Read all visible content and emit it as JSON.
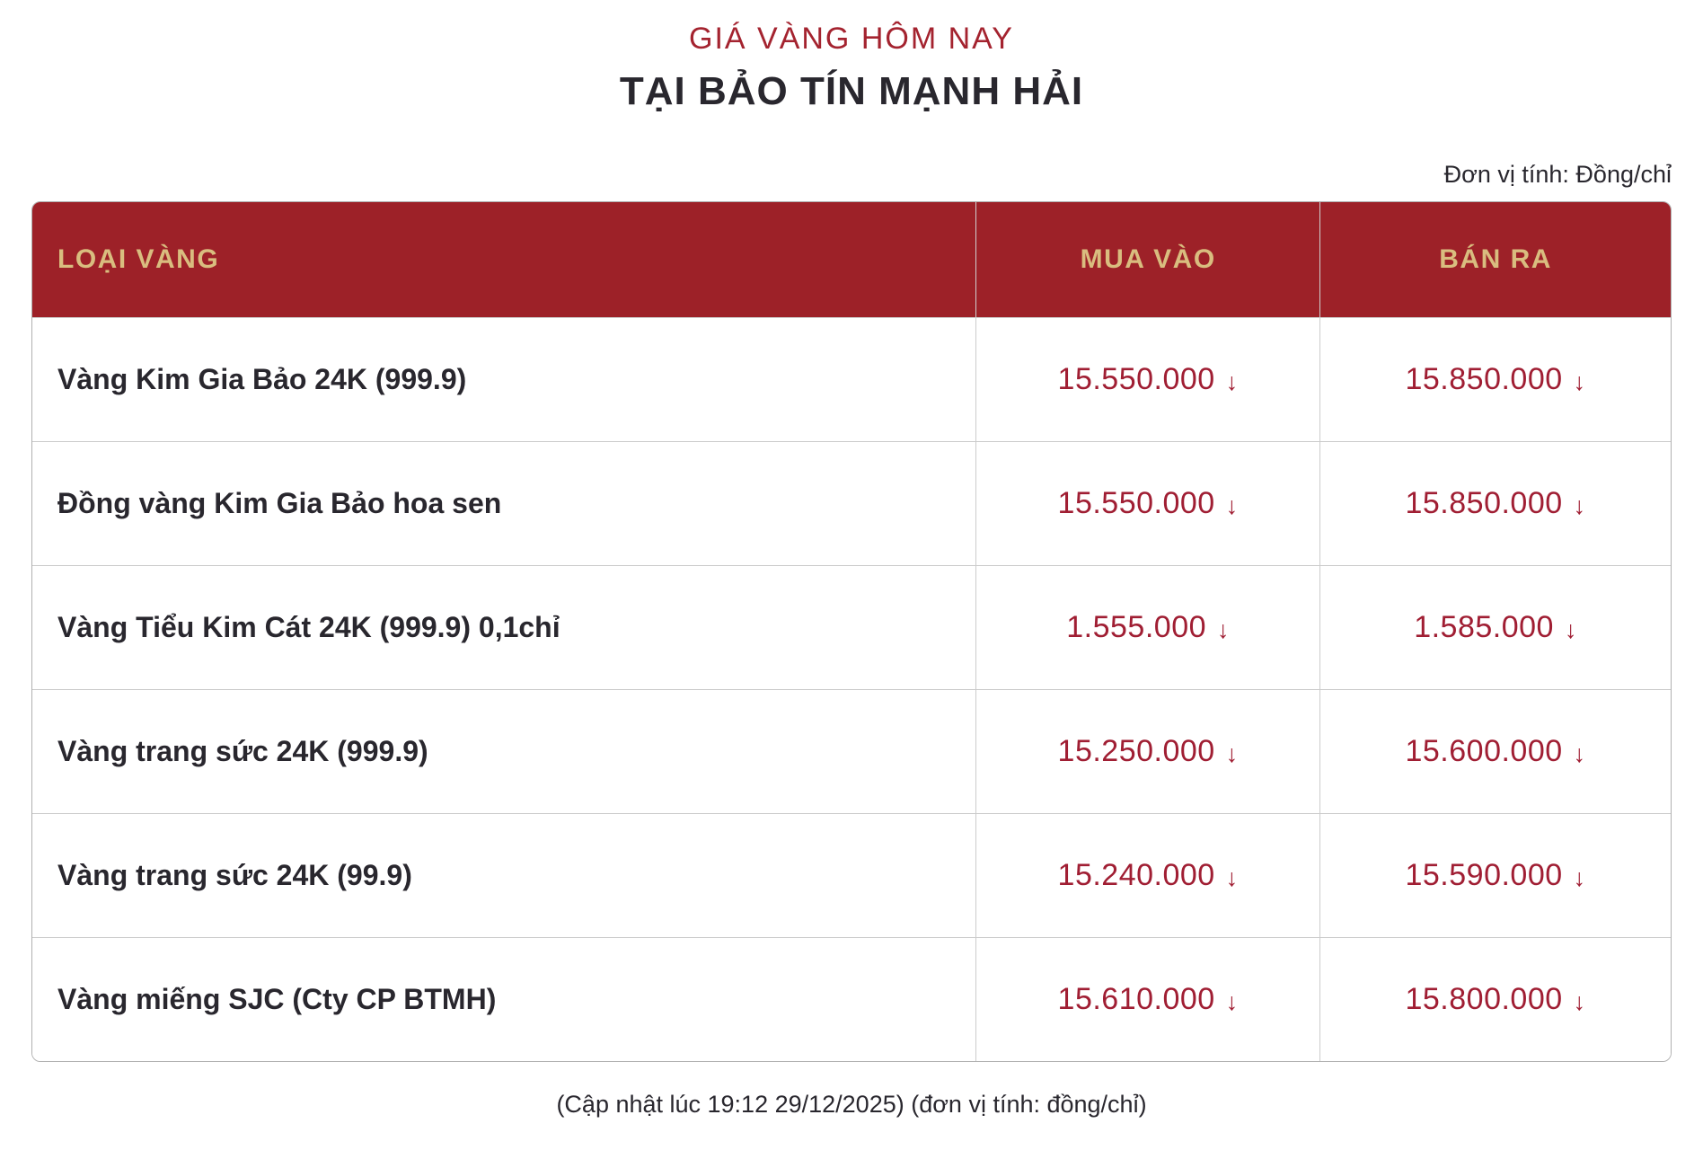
{
  "page": {
    "title": "GIÁ VÀNG HÔM NAY",
    "subtitle": "TẠI BẢO TÍN MẠNH HẢI",
    "unit_note": "Đơn vị tính: Đồng/chỉ",
    "footer_note": "(Cập nhật lúc 19:12 29/12/2025) (đơn vị tính: đồng/chỉ)"
  },
  "icons": {
    "down_arrow": "↓"
  },
  "colors": {
    "header_bg": "#9d2128",
    "header_text_gold": "#d9bd7f",
    "price_red": "#a01e33",
    "title_red": "#a4232f",
    "body_text": "#29272e",
    "divider": "#cccccc"
  },
  "table": {
    "columns": [
      {
        "label": "LOẠI VÀNG"
      },
      {
        "label": "MUA VÀO"
      },
      {
        "label": "BÁN RA"
      }
    ],
    "rows": [
      {
        "type": "Vàng Kim Gia Bảo 24K (999.9)",
        "buy": "15.550.000",
        "buy_trend": "down",
        "sell": "15.850.000",
        "sell_trend": "down"
      },
      {
        "type": "Đồng vàng Kim Gia Bảo hoa sen",
        "buy": "15.550.000",
        "buy_trend": "down",
        "sell": "15.850.000",
        "sell_trend": "down"
      },
      {
        "type": "Vàng Tiểu Kim Cát 24K (999.9) 0,1chỉ",
        "buy": "1.555.000",
        "buy_trend": "down",
        "sell": "1.585.000",
        "sell_trend": "down"
      },
      {
        "type": "Vàng trang sức 24K (999.9)",
        "buy": "15.250.000",
        "buy_trend": "down",
        "sell": "15.600.000",
        "sell_trend": "down"
      },
      {
        "type": "Vàng trang sức 24K (99.9)",
        "buy": "15.240.000",
        "buy_trend": "down",
        "sell": "15.590.000",
        "sell_trend": "down"
      },
      {
        "type": "Vàng miếng SJC (Cty CP BTMH)",
        "buy": "15.610.000",
        "buy_trend": "down",
        "sell": "15.800.000",
        "sell_trend": "down"
      }
    ]
  }
}
